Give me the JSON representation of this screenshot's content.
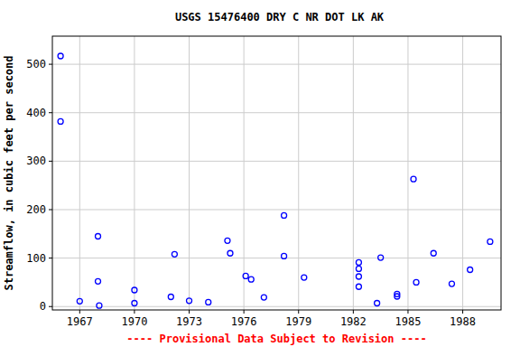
{
  "chart_data": {
    "type": "scatter",
    "title": "USGS 15476400 DRY C NR DOT LK AK",
    "y_label": "Streamflow, in cubic feet per second",
    "footer": "---- Provisional Data Subject to Revision ----",
    "x": [
      1965.95,
      1965.95,
      1967.0,
      1968.0,
      1968.0,
      1968.07,
      1970.0,
      1970.0,
      1972.0,
      1972.2,
      1973.0,
      1974.05,
      1975.1,
      1975.25,
      1976.1,
      1976.4,
      1977.1,
      1978.2,
      1978.2,
      1979.3,
      1982.3,
      1982.3,
      1982.3,
      1982.3,
      1983.3,
      1983.5,
      1984.4,
      1984.4,
      1985.3,
      1985.45,
      1986.4,
      1987.4,
      1988.4,
      1989.5
    ],
    "values": [
      517,
      382,
      11,
      145,
      52,
      2,
      34,
      7,
      20,
      108,
      12,
      9,
      136,
      110,
      63,
      56,
      19,
      188,
      104,
      60,
      91,
      78,
      62,
      41,
      7,
      101,
      26,
      21,
      263,
      50,
      110,
      47,
      76,
      134
    ],
    "color": "#0000ff",
    "marker": "circle",
    "xlim": [
      1965.5,
      1990.1
    ],
    "xticks": [
      1967,
      1970,
      1973,
      1976,
      1979,
      1982,
      1985,
      1988
    ],
    "ylim": [
      -7,
      558
    ],
    "yticks": [
      0,
      100,
      200,
      300,
      400,
      500
    ],
    "grid": true
  }
}
